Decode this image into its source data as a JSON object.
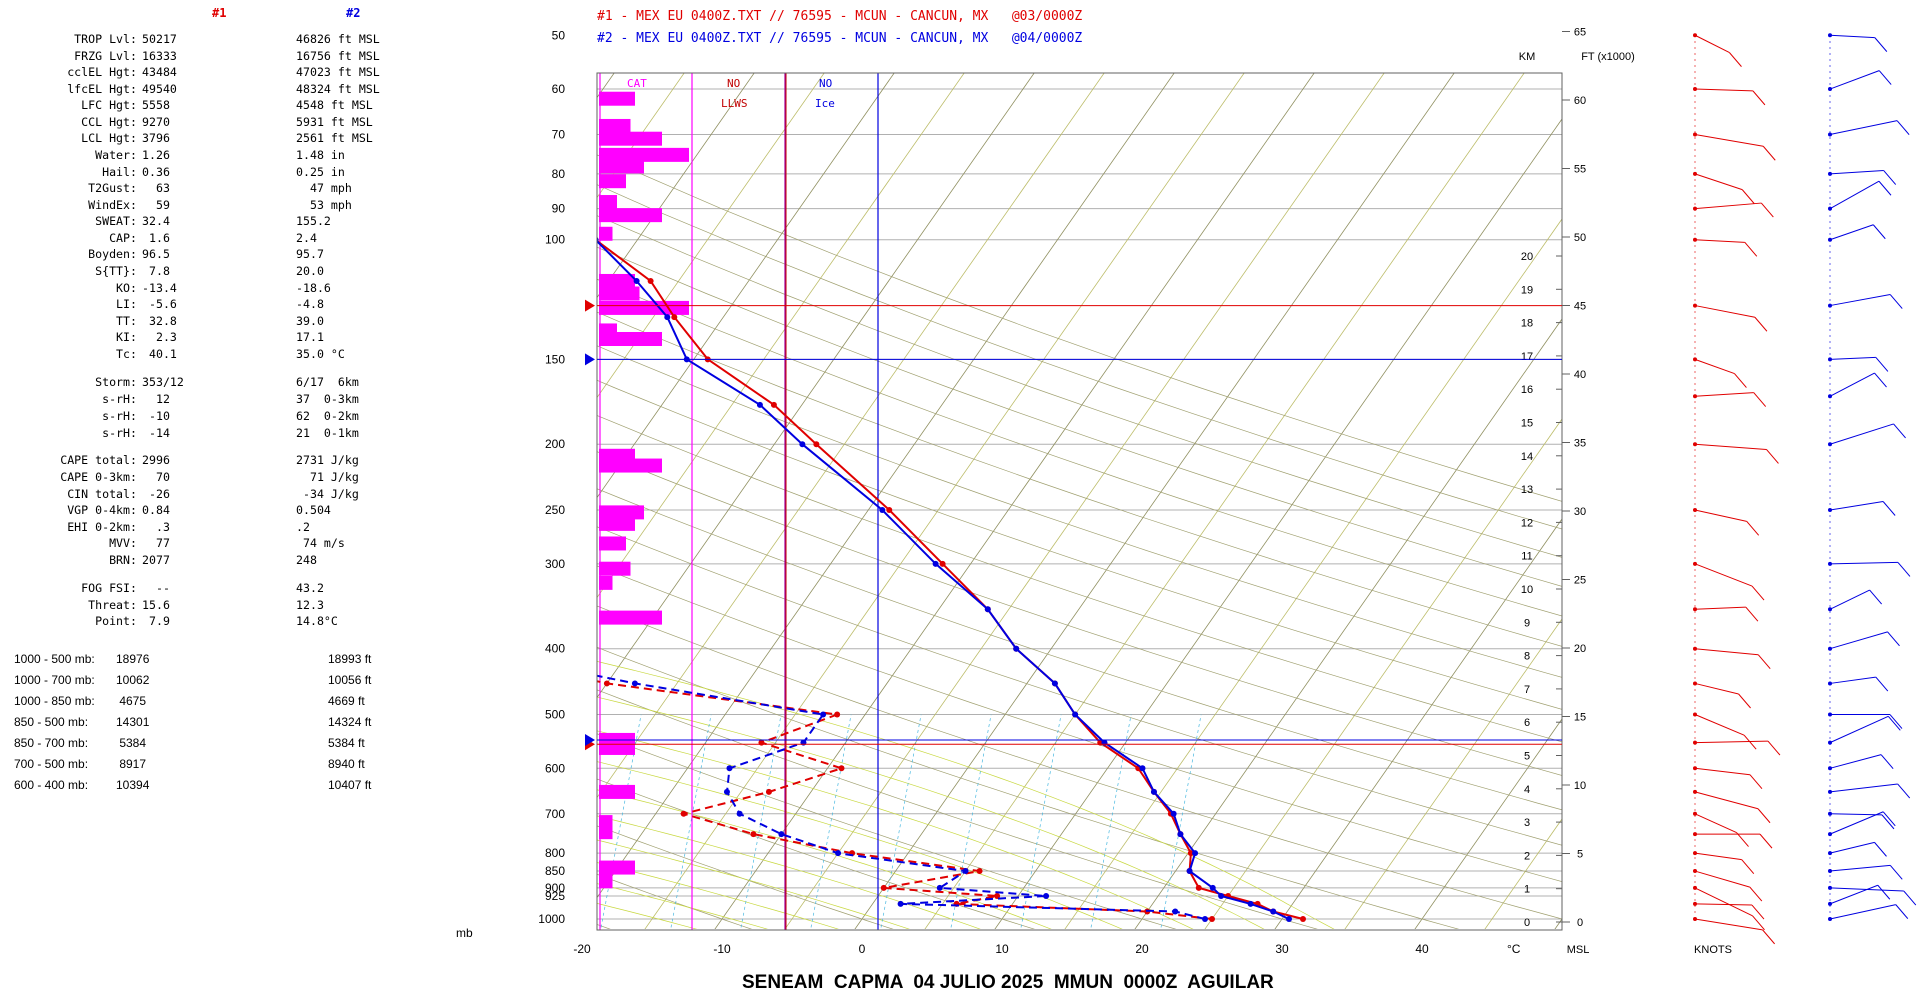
{
  "params": {
    "header1": "#1",
    "header2": "#2",
    "rows": [
      {
        "label": "TROP Lvl:",
        "v1": "50217",
        "v2": "46826 ft MSL",
        "y": 38
      },
      {
        "label": "FRZG Lvl:",
        "v1": "16333",
        "v2": "16756 ft MSL",
        "y": 55
      },
      {
        "label": "cclEL Hgt:",
        "v1": "43484",
        "v2": "47023 ft MSL",
        "y": 71
      },
      {
        "label": "lfcEL Hgt:",
        "v1": "49540",
        "v2": "48324 ft MSL",
        "y": 88
      },
      {
        "label": "LFC Hgt:",
        "v1": "5558",
        "v2": "4548 ft MSL",
        "y": 104
      },
      {
        "label": "CCL Hgt:",
        "v1": "9270",
        "v2": "5931 ft MSL",
        "y": 121
      },
      {
        "label": "LCL Hgt:",
        "v1": "3796",
        "v2": "2561 ft MSL",
        "y": 137
      },
      {
        "label": "Water:",
        "v1": "1.26",
        "v2": "1.48 in",
        "y": 154
      },
      {
        "label": "Hail:",
        "v1": "0.36",
        "v2": "0.25 in",
        "y": 171
      },
      {
        "label": "T2Gust:",
        "v1": "  63",
        "v2": "  47 mph",
        "y": 187
      },
      {
        "label": "WindEx:",
        "v1": "  59",
        "v2": "  53 mph",
        "y": 204
      },
      {
        "label": "SWEAT:",
        "v1": "32.4",
        "v2": "155.2",
        "y": 220
      },
      {
        "label": "CAP:",
        "v1": " 1.6",
        "v2": "2.4",
        "y": 237
      },
      {
        "label": "Boyden:",
        "v1": "96.5",
        "v2": "95.7",
        "y": 253
      },
      {
        "label": "S{TT}:",
        "v1": " 7.8",
        "v2": "20.0",
        "y": 270
      },
      {
        "label": "KO:",
        "v1": "-13.4",
        "v2": "-18.6",
        "y": 287
      },
      {
        "label": "LI:",
        "v1": " -5.6",
        "v2": "-4.8",
        "y": 303
      },
      {
        "label": "TT:",
        "v1": " 32.8",
        "v2": "39.0",
        "y": 320
      },
      {
        "label": "KI:",
        "v1": "  2.3",
        "v2": "17.1",
        "y": 336
      },
      {
        "label": "Tc:",
        "v1": " 40.1",
        "v2": "35.0 °C",
        "y": 353
      },
      {
        "label": "Storm:",
        "v1": "353/12",
        "v2": "6/17  6km",
        "y": 381
      },
      {
        "label": "s-rH:",
        "v1": "  12",
        "v2": "37  0-3km",
        "y": 398
      },
      {
        "label": "s-rH:",
        "v1": " -10",
        "v2": "62  0-2km",
        "y": 415
      },
      {
        "label": "s-rH:",
        "v1": " -14",
        "v2": "21  0-1km",
        "y": 432
      },
      {
        "label": "CAPE total:",
        "v1": "2996",
        "v2": "2731 J/kg",
        "y": 459
      },
      {
        "label": "CAPE 0-3km:",
        "v1": "  70",
        "v2": "  71 J/kg",
        "y": 476
      },
      {
        "label": "CIN total:",
        "v1": " -26",
        "v2": " -34 J/kg",
        "y": 493
      },
      {
        "label": "VGP 0-4km:",
        "v1": "0.84",
        "v2": "0.504",
        "y": 509
      },
      {
        "label": "EHI 0-2km:",
        "v1": "  .3",
        "v2": ".2",
        "y": 526
      },
      {
        "label": "MVV:",
        "v1": "  77",
        "v2": " 74 m/s",
        "y": 542
      },
      {
        "label": "BRN:",
        "v1": "2077",
        "v2": "248",
        "y": 559
      },
      {
        "label": "FOG FSI:",
        "v1": "  --",
        "v2": "43.2",
        "y": 587
      },
      {
        "label": "Threat:",
        "v1": "15.6",
        "v2": "12.3",
        "y": 604
      },
      {
        "label": "Point:",
        "v1": " 7.9",
        "v2": "14.8°C",
        "y": 620
      }
    ],
    "thickness": [
      {
        "label": "1000 - 500 mb:",
        "v1": "18976",
        "v2": "18993 ft",
        "y": 658
      },
      {
        "label": "1000 - 700 mb:",
        "v1": "10062",
        "v2": "10056 ft",
        "y": 679
      },
      {
        "label": "1000 - 850 mb:",
        "v1": " 4675",
        "v2": "4669 ft",
        "y": 700
      },
      {
        "label": "850 - 500 mb:",
        "v1": "14301",
        "v2": "14324 ft",
        "y": 721
      },
      {
        "label": "850 - 700 mb:",
        "v1": " 5384",
        "v2": "5384 ft",
        "y": 742
      },
      {
        "label": "700 - 500 mb:",
        "v1": " 8917",
        "v2": "8940 ft",
        "y": 763
      },
      {
        "label": "600 - 400 mb:",
        "v1": "10394",
        "v2": "10407 ft",
        "y": 784
      }
    ]
  },
  "legend": {
    "line1": "#1 - MEX EU 0400Z.TXT // 76595 - MCUN - CANCUN, MX   @03/0000Z",
    "line2": "#2 - MEX EU 0400Z.TXT // 76595 - MCUN - CANCUN, MX   @04/0000Z"
  },
  "title": "SENEAM  CAPMA  04 JULIO 2025  MMUN  0000Z  AGUILAR",
  "axis_unit_mb": "mb",
  "colors": {
    "series1": "#e00000",
    "series2": "#0000e0",
    "bars": "#ff00ff",
    "isotherm": "#bdbd6a",
    "mixing": "#47b8e0",
    "grid": "#404040"
  },
  "chart_data": {
    "type": "skew-t log-p sounding",
    "title": "SENEAM  CAPMA  04 JULIO 2025  MMUN  0000Z  AGUILAR",
    "x_axis": {
      "label": "°C",
      "ticks": [
        -20,
        -10,
        0,
        10,
        20,
        30,
        40
      ],
      "range": [
        -20,
        48
      ]
    },
    "y_axis": {
      "label": "mb",
      "ticks": [
        1000,
        925,
        900,
        850,
        800,
        700,
        600,
        500,
        400,
        300,
        250,
        200,
        150,
        100,
        90,
        80,
        70,
        60,
        50
      ],
      "scale": "log",
      "range": [
        1030,
        50
      ]
    },
    "right_axis_km": {
      "label": "KM",
      "ticks": [
        0,
        1,
        2,
        3,
        4,
        5,
        6,
        7,
        8,
        9,
        10,
        11,
        12,
        13,
        14,
        15,
        16,
        17,
        18,
        19,
        20
      ]
    },
    "right_axis_ft": {
      "label": "FT (x1000)",
      "ticks": [
        0,
        5,
        10,
        15,
        20,
        25,
        30,
        35,
        40,
        45,
        50,
        55,
        60,
        65
      ],
      "bottom_label": "MSL"
    },
    "panel_labels": {
      "cat": "CAT",
      "llws_no": "NO",
      "llws": "LLWS",
      "ice_no": "NO",
      "ice": "Ice"
    },
    "winds_label": "KNOTS",
    "series": [
      {
        "name": "#1",
        "temperature": [
          [
            1000,
            31.5
          ],
          [
            975,
            29.0
          ],
          [
            950,
            27.5
          ],
          [
            925,
            25.0
          ],
          [
            900,
            22.5
          ],
          [
            850,
            21.0
          ],
          [
            800,
            20.2
          ],
          [
            750,
            18.5
          ],
          [
            700,
            16.8
          ],
          [
            650,
            14.5
          ],
          [
            600,
            12.2
          ],
          [
            550,
            8.2
          ],
          [
            500,
            5.0
          ],
          [
            450,
            2.0
          ],
          [
            400,
            -2.5
          ],
          [
            350,
            -6.5
          ],
          [
            300,
            -12.0
          ],
          [
            250,
            -18.5
          ],
          [
            200,
            -27.0
          ],
          [
            175,
            -32.0
          ],
          [
            150,
            -39.0
          ],
          [
            130,
            -43.5
          ],
          [
            115,
            -47.0
          ],
          [
            100,
            -53.0
          ],
          [
            95,
            -55.5
          ],
          [
            90,
            -60.5
          ],
          [
            80,
            -63.8
          ],
          [
            70,
            -64.2
          ],
          [
            60,
            -64.0
          ],
          [
            50,
            -64.0
          ]
        ],
        "dewpoint": [
          [
            1000,
            25.0
          ],
          [
            975,
            20.0
          ],
          [
            950,
            6.0
          ],
          [
            925,
            8.5
          ],
          [
            900,
            0.0
          ],
          [
            850,
            6.0
          ],
          [
            800,
            -4.0
          ],
          [
            750,
            -12.0
          ],
          [
            700,
            -18.0
          ],
          [
            650,
            -13.0
          ],
          [
            600,
            -9.0
          ],
          [
            550,
            -16.0
          ],
          [
            500,
            -12.0
          ],
          [
            450,
            -30.0
          ],
          [
            400,
            -43.0
          ],
          [
            350,
            -38.0
          ],
          [
            300,
            -58.0
          ],
          [
            250,
            -70.0
          ],
          [
            200,
            -66.0
          ],
          [
            175,
            -83.0
          ],
          [
            150,
            -87.0
          ],
          [
            130,
            -84.0
          ],
          [
            115,
            -85.0
          ],
          [
            100,
            -85.5
          ],
          [
            95,
            -88.0
          ],
          [
            90,
            -90.0
          ],
          [
            80,
            -82.0
          ],
          [
            70,
            -83.0
          ],
          [
            60,
            -80.0
          ],
          [
            50,
            -79.0
          ]
        ]
      },
      {
        "name": "#2",
        "temperature": [
          [
            1000,
            30.5
          ],
          [
            975,
            29.0
          ],
          [
            950,
            27.0
          ],
          [
            925,
            24.5
          ],
          [
            900,
            23.5
          ],
          [
            850,
            21.0
          ],
          [
            800,
            20.5
          ],
          [
            750,
            18.5
          ],
          [
            700,
            17.0
          ],
          [
            650,
            14.5
          ],
          [
            600,
            12.5
          ],
          [
            550,
            8.5
          ],
          [
            500,
            5.0
          ],
          [
            450,
            2.0
          ],
          [
            400,
            -2.5
          ],
          [
            350,
            -6.5
          ],
          [
            300,
            -12.5
          ],
          [
            250,
            -19.0
          ],
          [
            200,
            -28.0
          ],
          [
            175,
            -33.0
          ],
          [
            150,
            -40.5
          ],
          [
            130,
            -44.0
          ],
          [
            115,
            -48.0
          ],
          [
            100,
            -53.0
          ],
          [
            95,
            -56.0
          ],
          [
            90,
            -61.0
          ],
          [
            80,
            -63.0
          ],
          [
            70,
            -65.0
          ],
          [
            60,
            -65.5
          ],
          [
            50,
            -66.0
          ]
        ],
        "dewpoint": [
          [
            1000,
            24.5
          ],
          [
            975,
            22.0
          ],
          [
            950,
            2.0
          ],
          [
            925,
            12.0
          ],
          [
            900,
            4.0
          ],
          [
            850,
            5.0
          ],
          [
            800,
            -5.0
          ],
          [
            750,
            -10.0
          ],
          [
            700,
            -14.0
          ],
          [
            650,
            -16.0
          ],
          [
            600,
            -17.0
          ],
          [
            550,
            -13.0
          ],
          [
            500,
            -13.0
          ],
          [
            450,
            -28.0
          ],
          [
            400,
            -42.0
          ],
          [
            350,
            -39.0
          ],
          [
            300,
            -58.0
          ],
          [
            250,
            -68.0
          ],
          [
            200,
            -70.0
          ],
          [
            175,
            -77.0
          ],
          [
            150,
            -82.0
          ],
          [
            130,
            -78.0
          ],
          [
            115,
            -83.0
          ],
          [
            100,
            -86.0
          ],
          [
            95,
            -87.0
          ],
          [
            90,
            -85.0
          ],
          [
            80,
            -78.0
          ],
          [
            70,
            -75.0
          ],
          [
            60,
            -71.0
          ],
          [
            50,
            -70.0
          ]
        ]
      }
    ],
    "markers": {
      "series1_tropopause_mb": 125,
      "series2_tropopause_mb": 150,
      "series1_freezing_mb": 553,
      "series2_freezing_mb": 545
    },
    "cat_bars": {
      "note": "magenta turbulence bars, relative intensity 0-1 by pressure",
      "bars": [
        [
          62,
          0.4
        ],
        [
          68,
          0.35
        ],
        [
          71,
          0.7
        ],
        [
          75,
          1.0
        ],
        [
          78,
          0.5
        ],
        [
          82,
          0.3
        ],
        [
          88,
          0.2
        ],
        [
          92,
          0.7
        ],
        [
          98,
          0.15
        ],
        [
          115,
          0.4
        ],
        [
          120,
          0.45
        ],
        [
          126,
          1.0
        ],
        [
          136,
          0.2
        ],
        [
          140,
          0.7
        ],
        [
          208,
          0.4
        ],
        [
          215,
          0.7
        ],
        [
          252,
          0.5
        ],
        [
          262,
          0.4
        ],
        [
          280,
          0.3
        ],
        [
          305,
          0.35
        ],
        [
          320,
          0.15
        ],
        [
          360,
          0.7
        ],
        [
          545,
          0.4
        ],
        [
          560,
          0.4
        ],
        [
          650,
          0.4
        ],
        [
          720,
          0.15
        ],
        [
          745,
          0.15
        ],
        [
          840,
          0.4
        ],
        [
          880,
          0.15
        ]
      ]
    },
    "winds": [
      {
        "name": "#1",
        "levels": [
          50,
          60,
          70,
          80,
          90,
          100,
          125,
          150,
          170,
          200,
          250,
          300,
          350,
          400,
          450,
          500,
          550,
          600,
          650,
          700,
          750,
          800,
          850,
          900,
          950,
          1000
        ]
      },
      {
        "name": "#2",
        "levels": [
          50,
          60,
          70,
          80,
          90,
          100,
          125,
          150,
          170,
          200,
          250,
          300,
          350,
          400,
          450,
          500,
          550,
          600,
          650,
          700,
          750,
          800,
          850,
          900,
          950,
          1000
        ]
      }
    ]
  }
}
